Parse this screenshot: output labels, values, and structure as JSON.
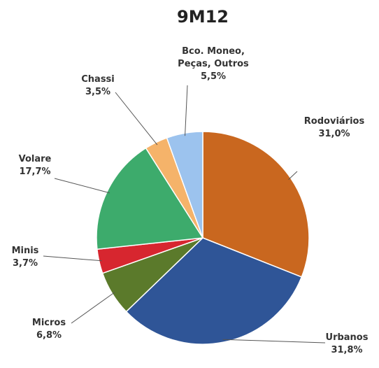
{
  "chart_data": {
    "type": "pie",
    "title": "9M12",
    "categories": [
      "Rodoviários",
      "Urbanos",
      "Micros",
      "Minis",
      "Volare",
      "Chassi",
      "Bco. Moneo, Peças, Outros"
    ],
    "values": [
      31.0,
      31.8,
      6.8,
      3.7,
      17.7,
      3.5,
      5.5
    ],
    "value_labels": [
      "31,0%",
      "31,8%",
      "6,8%",
      "3,7%",
      "17,7%",
      "3,5%",
      "5,5%"
    ],
    "colors": [
      "#c9671f",
      "#2f5597",
      "#5b7a2b",
      "#d7262f",
      "#3dab6c",
      "#f5b36a",
      "#9cc3ee"
    ]
  }
}
